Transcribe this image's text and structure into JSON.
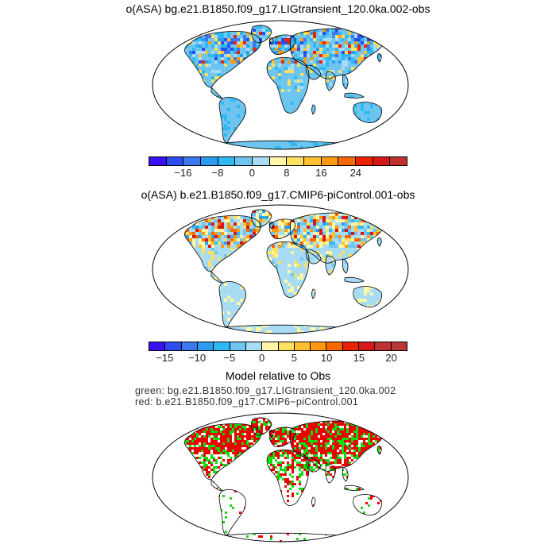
{
  "panels": [
    {
      "title": "o(ASA) bg.e21.B1850.f09_g17.LIGtransient_120.0ka.002-obs",
      "colorbar": {
        "colors": [
          "#3a10f0",
          "#2a4cf0",
          "#3c78f0",
          "#2c9cf0",
          "#30b8f2",
          "#6ec6f0",
          "#a8dcf4",
          "#fff7a8",
          "#fde060",
          "#fdc030",
          "#fd9a10",
          "#f86800",
          "#ea2200",
          "#d81818",
          "#c03030"
        ],
        "tick_labels": [
          "−16",
          "−8",
          "0",
          "8",
          "16",
          "24"
        ]
      }
    },
    {
      "title": "o(ASA) b.e21.B1850.f09_g17.CMIP6-piControl.001-obs",
      "colorbar": {
        "colors": [
          "#3a10f0",
          "#2a4cf0",
          "#3c78f0",
          "#2c9cf0",
          "#30b8f2",
          "#6ec6f0",
          "#a8dcf4",
          "#fff7a8",
          "#fde060",
          "#fdc030",
          "#fd9a10",
          "#f86800",
          "#ea2200",
          "#d81818",
          "#c03030",
          "#b83838"
        ],
        "tick_labels": [
          "−15",
          "−10",
          "−5",
          "0",
          "5",
          "10",
          "15",
          "20"
        ]
      }
    },
    {
      "title": "Model relative to Obs",
      "legend_green": "green: bg.e21.B1850.f09_g17.LIGtransient_120.0ka.002",
      "legend_red": "red: b.e21.B1850.f09_g17.CMIP6−piControl.001",
      "colors": {
        "green": "#10dd10",
        "red": "#ee0000"
      }
    }
  ]
}
